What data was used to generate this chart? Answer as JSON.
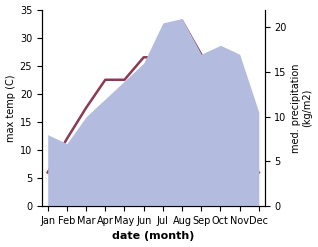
{
  "months": [
    "Jan",
    "Feb",
    "Mar",
    "Apr",
    "May",
    "Jun",
    "Jul",
    "Aug",
    "Sep",
    "Oct",
    "Nov",
    "Dec"
  ],
  "max_temp": [
    6.0,
    12.0,
    17.5,
    22.5,
    22.5,
    26.5,
    26.5,
    33.0,
    27.0,
    19.0,
    9.5,
    6.0
  ],
  "precipitation": [
    8.0,
    7.0,
    10.0,
    12.0,
    14.0,
    16.0,
    20.5,
    21.0,
    17.0,
    18.0,
    17.0,
    10.5
  ],
  "temp_color": "#8B3A52",
  "precip_fill_color": "#b3bcde",
  "ylabel_left": "max temp (C)",
  "ylabel_right": "med. precipitation\n(kg/m2)",
  "xlabel": "date (month)",
  "ylim_left": [
    0,
    35
  ],
  "ylim_right": [
    0,
    22
  ],
  "yticks_left": [
    0,
    5,
    10,
    15,
    20,
    25,
    30,
    35
  ],
  "yticks_right": [
    0,
    5,
    10,
    15,
    20
  ],
  "background_color": "#ffffff"
}
